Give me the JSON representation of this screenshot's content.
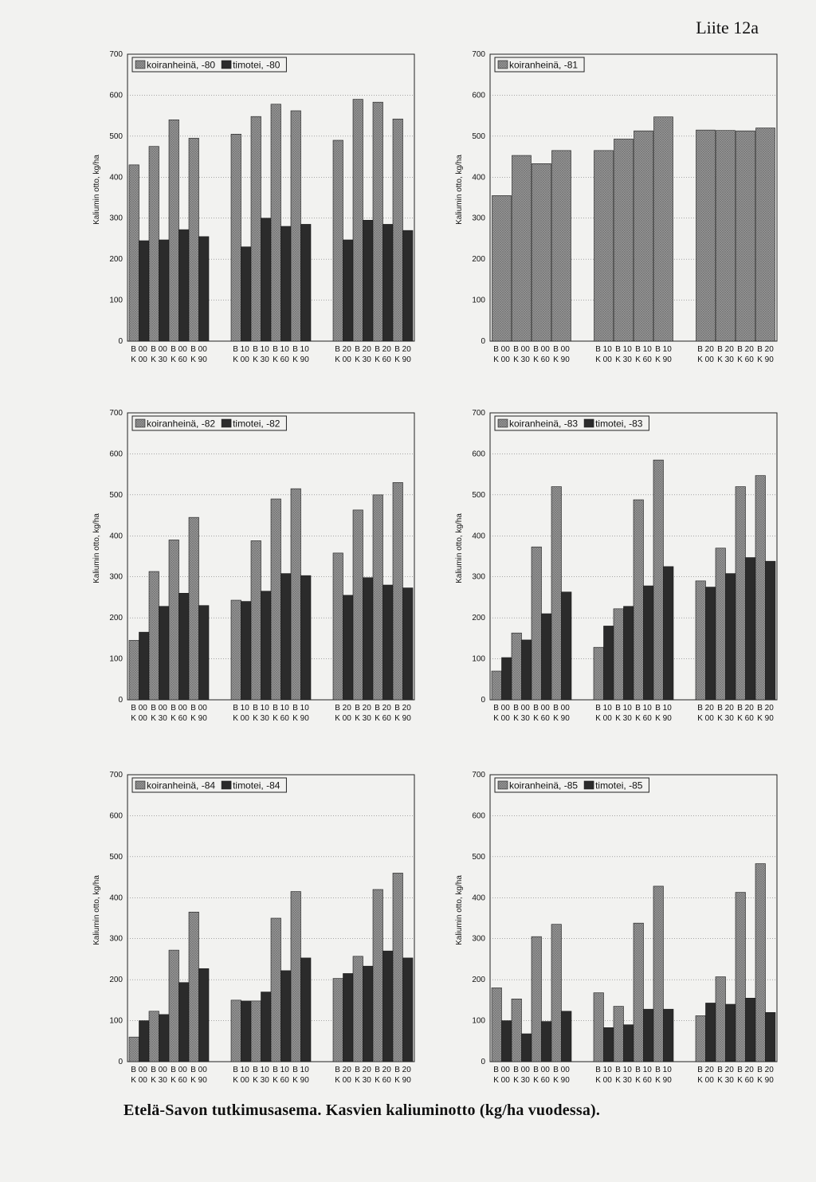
{
  "page": {
    "label": "Liite 12a",
    "caption": "Etelä-Savon tutkimusasema. Kasvien kaliuminotto (kg/ha vuodessa)."
  },
  "colors": {
    "koiranheina": "#9a9a9a",
    "timotei": "#2b2b2b",
    "background": "#f2f2f0"
  },
  "chart_data": [
    {
      "type": "bar",
      "ylabel": "Kaliumin otto, kg/ha",
      "ylim": [
        0,
        700
      ],
      "yticks": [
        0,
        100,
        200,
        300,
        400,
        500,
        600,
        700
      ],
      "categories": [
        [
          "B 00",
          "K 00"
        ],
        [
          "B 00",
          "K 30"
        ],
        [
          "B 00",
          "K 60"
        ],
        [
          "B 00",
          "K 90"
        ],
        [
          "B 10",
          "K 00"
        ],
        [
          "B 10",
          "K 30"
        ],
        [
          "B 10",
          "K 60"
        ],
        [
          "B 10",
          "K 90"
        ],
        [
          "B 20",
          "K 00"
        ],
        [
          "B 20",
          "K 30"
        ],
        [
          "B 20",
          "K 60"
        ],
        [
          "B 20",
          "K 90"
        ]
      ],
      "series": [
        {
          "name": "koiranheinä, -80",
          "values": [
            430,
            475,
            540,
            495,
            505,
            548,
            578,
            562,
            490,
            590,
            583,
            542
          ]
        },
        {
          "name": "timotei, -80",
          "values": [
            245,
            247,
            272,
            255,
            230,
            300,
            280,
            285,
            247,
            295,
            285,
            270
          ]
        }
      ]
    },
    {
      "type": "bar",
      "ylabel": "Kaliumin otto, kg/ha",
      "ylim": [
        0,
        700
      ],
      "yticks": [
        0,
        100,
        200,
        300,
        400,
        500,
        600,
        700
      ],
      "categories": [
        [
          "B 00",
          "K 00"
        ],
        [
          "B 00",
          "K 30"
        ],
        [
          "B 00",
          "K 60"
        ],
        [
          "B 00",
          "K 90"
        ],
        [
          "B 10",
          "K 00"
        ],
        [
          "B 10",
          "K 30"
        ],
        [
          "B 10",
          "K 60"
        ],
        [
          "B 10",
          "K 90"
        ],
        [
          "B 20",
          "K 00"
        ],
        [
          "B 20",
          "K 30"
        ],
        [
          "B 20",
          "K 60"
        ],
        [
          "B 20",
          "K 90"
        ]
      ],
      "series": [
        {
          "name": "koiranheinä, -81",
          "values": [
            355,
            453,
            433,
            465,
            465,
            493,
            513,
            547,
            515,
            514,
            513,
            520
          ]
        }
      ]
    },
    {
      "type": "bar",
      "ylabel": "Kaliumin otto, kg/ha",
      "ylim": [
        0,
        700
      ],
      "yticks": [
        0,
        100,
        200,
        300,
        400,
        500,
        600,
        700
      ],
      "categories": [
        [
          "B 00",
          "K 00"
        ],
        [
          "B 00",
          "K 30"
        ],
        [
          "B 00",
          "K 60"
        ],
        [
          "B 00",
          "K 90"
        ],
        [
          "B 10",
          "K 00"
        ],
        [
          "B 10",
          "K 30"
        ],
        [
          "B 10",
          "K 60"
        ],
        [
          "B 10",
          "K 90"
        ],
        [
          "B 20",
          "K 00"
        ],
        [
          "B 20",
          "K 30"
        ],
        [
          "B 20",
          "K 60"
        ],
        [
          "B 20",
          "K 90"
        ]
      ],
      "series": [
        {
          "name": "koiranheinä, -82",
          "values": [
            145,
            313,
            390,
            445,
            243,
            388,
            490,
            515,
            358,
            463,
            500,
            530
          ]
        },
        {
          "name": "timotei, -82",
          "values": [
            165,
            228,
            260,
            230,
            240,
            265,
            308,
            303,
            255,
            298,
            280,
            273
          ]
        }
      ]
    },
    {
      "type": "bar",
      "ylabel": "Kaliumin otto, kg/ha",
      "ylim": [
        0,
        700
      ],
      "yticks": [
        0,
        100,
        200,
        300,
        400,
        500,
        600,
        700
      ],
      "categories": [
        [
          "B 00",
          "K 00"
        ],
        [
          "B 00",
          "K 30"
        ],
        [
          "B 00",
          "K 60"
        ],
        [
          "B 00",
          "K 90"
        ],
        [
          "B 10",
          "K 00"
        ],
        [
          "B 10",
          "K 30"
        ],
        [
          "B 10",
          "K 60"
        ],
        [
          "B 10",
          "K 90"
        ],
        [
          "B 20",
          "K 00"
        ],
        [
          "B 20",
          "K 30"
        ],
        [
          "B 20",
          "K 60"
        ],
        [
          "B 20",
          "K 90"
        ]
      ],
      "series": [
        {
          "name": "koiranheinä, -83",
          "values": [
            70,
            163,
            373,
            520,
            128,
            222,
            488,
            585,
            290,
            370,
            520,
            547
          ]
        },
        {
          "name": "timotei, -83",
          "values": [
            103,
            146,
            210,
            263,
            180,
            228,
            278,
            325,
            275,
            308,
            347,
            338
          ]
        }
      ]
    },
    {
      "type": "bar",
      "ylabel": "Kaliumin otto, kg/ha",
      "ylim": [
        0,
        700
      ],
      "yticks": [
        0,
        100,
        200,
        300,
        400,
        500,
        600,
        700
      ],
      "categories": [
        [
          "B 00",
          "K 00"
        ],
        [
          "B 00",
          "K 30"
        ],
        [
          "B 00",
          "K 60"
        ],
        [
          "B 00",
          "K 90"
        ],
        [
          "B 10",
          "K 00"
        ],
        [
          "B 10",
          "K 30"
        ],
        [
          "B 10",
          "K 60"
        ],
        [
          "B 10",
          "K 90"
        ],
        [
          "B 20",
          "K 00"
        ],
        [
          "B 20",
          "K 30"
        ],
        [
          "B 20",
          "K 60"
        ],
        [
          "B 20",
          "K 90"
        ]
      ],
      "series": [
        {
          "name": "koiranheinä, -84",
          "values": [
            60,
            123,
            272,
            365,
            150,
            148,
            350,
            415,
            203,
            257,
            420,
            460
          ]
        },
        {
          "name": "timotei, -84",
          "values": [
            100,
            115,
            193,
            227,
            148,
            170,
            222,
            253,
            215,
            233,
            270,
            253
          ]
        }
      ]
    },
    {
      "type": "bar",
      "ylabel": "Kaliumin otto, kg/ha",
      "ylim": [
        0,
        700
      ],
      "yticks": [
        0,
        100,
        200,
        300,
        400,
        500,
        600,
        700
      ],
      "categories": [
        [
          "B 00",
          "K 00"
        ],
        [
          "B 00",
          "K 30"
        ],
        [
          "B 00",
          "K 60"
        ],
        [
          "B 00",
          "K 90"
        ],
        [
          "B 10",
          "K 00"
        ],
        [
          "B 10",
          "K 30"
        ],
        [
          "B 10",
          "K 60"
        ],
        [
          "B 10",
          "K 90"
        ],
        [
          "B 20",
          "K 00"
        ],
        [
          "B 20",
          "K 30"
        ],
        [
          "B 20",
          "K 60"
        ],
        [
          "B 20",
          "K 90"
        ]
      ],
      "series": [
        {
          "name": "koiranheinä, -85",
          "values": [
            180,
            153,
            305,
            335,
            168,
            135,
            338,
            428,
            112,
            207,
            413,
            483
          ]
        },
        {
          "name": "timotei, -85",
          "values": [
            100,
            68,
            98,
            123,
            83,
            90,
            128,
            128,
            143,
            140,
            155,
            120
          ]
        }
      ]
    }
  ]
}
